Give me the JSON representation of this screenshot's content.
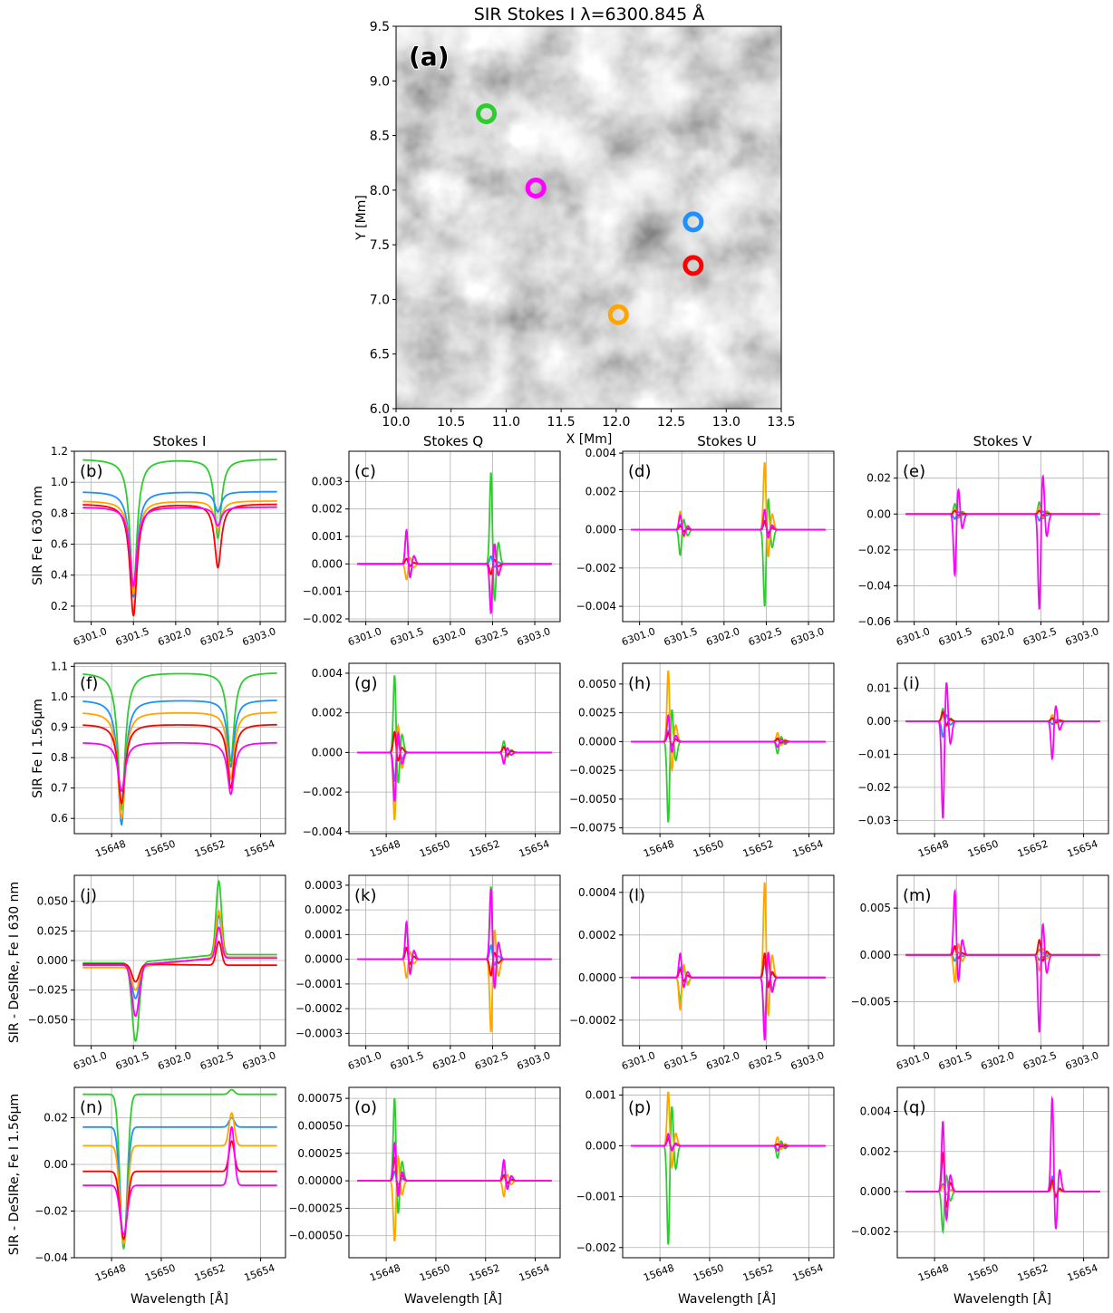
{
  "colors": {
    "green": "#2ecc2e",
    "blue": "#1e90ff",
    "orange": "#ffa500",
    "red": "#ff0000",
    "magenta": "#ff00ff",
    "grid": "#b0b0b0"
  },
  "figure": {
    "map": {
      "title": "SIR Stokes I λ=6300.845 Å",
      "panel": "(a)",
      "xlabel": "X [Mm]",
      "ylabel": "Y [Mm]",
      "xlim": [
        10.0,
        13.5
      ],
      "ylim": [
        6.0,
        9.5
      ],
      "xticks": [
        "10.0",
        "10.5",
        "11.0",
        "11.5",
        "12.0",
        "12.5",
        "13.0",
        "13.5"
      ],
      "yticks": [
        "6.0",
        "6.5",
        "7.0",
        "7.5",
        "8.0",
        "8.5",
        "9.0",
        "9.5"
      ],
      "markers": [
        {
          "x": 10.82,
          "y": 8.7,
          "color": "green"
        },
        {
          "x": 11.27,
          "y": 8.02,
          "color": "magenta"
        },
        {
          "x": 12.7,
          "y": 7.71,
          "color": "blue"
        },
        {
          "x": 12.7,
          "y": 7.31,
          "color": "red"
        },
        {
          "x": 12.02,
          "y": 6.86,
          "color": "orange"
        }
      ]
    },
    "col_titles": [
      "Stokes I",
      "Stokes Q",
      "Stokes U",
      "Stokes V"
    ],
    "row_labels": [
      "SIR Fe I 630 nm",
      "SIR Fe I 1.56μm",
      "SIR - DeSIRe, Fe I 630 nm",
      "SIR - DeSIRe, Fe I 1.56μm"
    ],
    "xlabel": "Wavelength [Å]"
  },
  "chart_data": [
    {
      "panel": "(b)",
      "type": "line",
      "xlim": [
        6300.8,
        6303.3
      ],
      "ylim": [
        0.1,
        1.2
      ],
      "xticks": [
        "6301.0",
        "6301.5",
        "6302.0",
        "6302.5",
        "6303.0"
      ],
      "yticks": [
        "0.2",
        "0.4",
        "0.6",
        "0.8",
        "1.0",
        "1.2"
      ],
      "lines": [
        6301.5,
        6302.5
      ],
      "series": [
        {
          "color": "green",
          "params": [
            1.15,
            0.3,
            0.86,
            0.35
          ]
        },
        {
          "color": "blue",
          "params": [
            0.94,
            0.26,
            0.67,
            0.54
          ]
        },
        {
          "color": "orange",
          "params": [
            0.88,
            0.28,
            0.68,
            0.49
          ]
        },
        {
          "color": "red",
          "params": [
            0.86,
            0.14,
            0.61,
            0.2
          ]
        },
        {
          "color": "magenta",
          "params": [
            0.84,
            0.33,
            0.52,
            0.4
          ]
        }
      ]
    },
    {
      "panel": "(c)",
      "type": "line",
      "xlim": [
        6300.8,
        6303.3
      ],
      "ylim": [
        -0.0021,
        0.0041
      ],
      "xticks": [
        "6301.0",
        "6301.5",
        "6302.0",
        "6302.5",
        "6303.0"
      ],
      "yticks": [
        "−0.002",
        "−0.001",
        "0.000",
        "0.001",
        "0.002",
        "0.003"
      ],
      "lines": [
        6301.5,
        6302.5
      ],
      "series": [
        {
          "color": "green",
          "peaks": [
            0.0013,
            0.0035
          ]
        },
        {
          "color": "blue",
          "peaks": [
            0.0002,
            0.0003
          ]
        },
        {
          "color": "orange",
          "peaks": [
            -0.0006,
            -0.0015
          ]
        },
        {
          "color": "red",
          "peaks": [
            0.0002,
            -0.0004
          ]
        },
        {
          "color": "magenta",
          "peaks": [
            0.0013,
            -0.0019
          ]
        }
      ]
    },
    {
      "panel": "(d)",
      "type": "line",
      "xlim": [
        6300.8,
        6303.3
      ],
      "ylim": [
        -0.0048,
        0.0041
      ],
      "xticks": [
        "6301.0",
        "6301.5",
        "6302.0",
        "6302.5",
        "6303.0"
      ],
      "yticks": [
        "−0.004",
        "−0.002",
        "0.000",
        "0.002",
        "0.004"
      ],
      "lines": [
        6301.5,
        6302.5
      ],
      "series": [
        {
          "color": "green",
          "peaks": [
            -0.0014,
            -0.0042
          ]
        },
        {
          "color": "blue",
          "peaks": [
            0.0003,
            0.0004
          ]
        },
        {
          "color": "orange",
          "peaks": [
            0.001,
            0.0037
          ]
        },
        {
          "color": "red",
          "peaks": [
            0.0002,
            0.0005
          ]
        },
        {
          "color": "magenta",
          "peaks": [
            0.0008,
            0.0011
          ]
        }
      ]
    },
    {
      "panel": "(e)",
      "type": "line",
      "xlim": [
        6300.8,
        6303.3
      ],
      "ylim": [
        -0.06,
        0.035
      ],
      "xticks": [
        "6301.0",
        "6301.5",
        "6302.0",
        "6302.5",
        "6303.0"
      ],
      "yticks": [
        "−0.06",
        "−0.04",
        "−0.02",
        "0.00",
        "0.02"
      ],
      "lines": [
        6301.5,
        6302.5
      ],
      "series": [
        {
          "color": "green",
          "peaks": [
            0.006,
            0.007
          ]
        },
        {
          "color": "blue",
          "peaks": [
            -0.003,
            -0.004
          ]
        },
        {
          "color": "orange",
          "peaks": [
            0.003,
            0.004
          ]
        },
        {
          "color": "red",
          "peaks": [
            0.002,
            0.002
          ]
        },
        {
          "color": "magenta",
          "peaks": [
            -0.036,
            -0.056
          ]
        }
      ]
    },
    {
      "panel": "(f)",
      "type": "line",
      "xlim": [
        15646.5,
        15655.0
      ],
      "ylim": [
        0.55,
        1.11
      ],
      "xticks": [
        "15648",
        "15650",
        "15652",
        "15654"
      ],
      "yticks": [
        "0.6",
        "0.7",
        "0.8",
        "0.9",
        "1.0",
        "1.1"
      ],
      "lines": [
        15648.4,
        15652.8
      ],
      "series": [
        {
          "color": "green",
          "params": [
            1.08,
            0.63,
            0.95,
            0.66
          ]
        },
        {
          "color": "blue",
          "params": [
            0.99,
            0.58,
            0.92,
            0.7
          ]
        },
        {
          "color": "orange",
          "params": [
            0.95,
            0.6,
            0.9,
            0.68
          ]
        },
        {
          "color": "red",
          "params": [
            0.91,
            0.65,
            0.91,
            0.7
          ]
        },
        {
          "color": "magenta",
          "params": [
            0.85,
            0.69,
            0.9,
            0.73
          ]
        }
      ]
    },
    {
      "panel": "(g)",
      "type": "line",
      "xlim": [
        15646.5,
        15655.0
      ],
      "ylim": [
        -0.0041,
        0.0045
      ],
      "xticks": [
        "15648",
        "15650",
        "15652",
        "15654"
      ],
      "yticks": [
        "−0.004",
        "−0.002",
        "0.000",
        "0.002",
        "0.004"
      ],
      "lines": [
        15648.4,
        15652.8
      ],
      "series": [
        {
          "color": "green",
          "peaks": [
            0.0041,
            0.0006
          ]
        },
        {
          "color": "blue",
          "peaks": [
            -0.0015,
            0.0003
          ]
        },
        {
          "color": "orange",
          "peaks": [
            -0.0036,
            -0.0005
          ]
        },
        {
          "color": "red",
          "peaks": [
            0.0011,
            0.0003
          ]
        },
        {
          "color": "magenta",
          "peaks": [
            -0.0026,
            -0.0006
          ]
        }
      ]
    },
    {
      "panel": "(h)",
      "type": "line",
      "xlim": [
        15646.5,
        15655.0
      ],
      "ylim": [
        -0.008,
        0.0068
      ],
      "xticks": [
        "15648",
        "15650",
        "15652",
        "15654"
      ],
      "yticks": [
        "−0.0075",
        "−0.0050",
        "−0.0025",
        "0.0000",
        "0.0025",
        "0.0050"
      ],
      "lines": [
        15648.4,
        15652.8
      ],
      "series": [
        {
          "color": "green",
          "peaks": [
            -0.0074,
            -0.0011
          ]
        },
        {
          "color": "blue",
          "peaks": [
            0.001,
            0.0002
          ]
        },
        {
          "color": "orange",
          "peaks": [
            0.0065,
            0.0008
          ]
        },
        {
          "color": "red",
          "peaks": [
            0.0008,
            0.0003
          ]
        },
        {
          "color": "magenta",
          "peaks": [
            0.0024,
            -0.0005
          ]
        }
      ]
    },
    {
      "panel": "(i)",
      "type": "line",
      "xlim": [
        15646.5,
        15655.0
      ],
      "ylim": [
        -0.034,
        0.0175
      ],
      "xticks": [
        "15648",
        "15650",
        "15652",
        "15654"
      ],
      "yticks": [
        "−0.03",
        "−0.02",
        "−0.01",
        "0.00",
        "0.01"
      ],
      "lines": [
        15648.4,
        15652.8
      ],
      "series": [
        {
          "color": "green",
          "peaks": [
            0.004,
            0.001
          ]
        },
        {
          "color": "blue",
          "peaks": [
            -0.005,
            -0.001
          ]
        },
        {
          "color": "orange",
          "peaks": [
            0.002,
            0.002
          ]
        },
        {
          "color": "red",
          "peaks": [
            0.003,
            0.001
          ]
        },
        {
          "color": "magenta",
          "peaks": [
            -0.031,
            -0.012
          ]
        }
      ]
    },
    {
      "panel": "(j)",
      "type": "line",
      "xlim": [
        6300.8,
        6303.3
      ],
      "ylim": [
        -0.072,
        0.072
      ],
      "xticks": [
        "6301.0",
        "6301.5",
        "6302.0",
        "6302.5",
        "6303.0"
      ],
      "yticks": [
        "−0.050",
        "−0.025",
        "0.000",
        "0.025",
        "0.050"
      ],
      "lines": [
        6301.5,
        6302.5
      ],
      "series": [
        {
          "color": "green",
          "params": [
            -0.002,
            -0.068,
            0.005,
            0.067
          ]
        },
        {
          "color": "blue",
          "params": [
            -0.004,
            -0.032,
            0.002,
            0.038
          ]
        },
        {
          "color": "orange",
          "params": [
            -0.006,
            -0.025,
            0.003,
            0.042
          ]
        },
        {
          "color": "red",
          "params": [
            -0.003,
            -0.018,
            -0.004,
            0.016
          ]
        },
        {
          "color": "magenta",
          "params": [
            -0.004,
            -0.047,
            0.002,
            0.028
          ]
        }
      ]
    },
    {
      "panel": "(k)",
      "type": "line",
      "xlim": [
        6300.8,
        6303.3
      ],
      "ylim": [
        -0.00035,
        0.00034
      ],
      "xticks": [
        "6301.0",
        "6301.5",
        "6302.0",
        "6302.5",
        "6303.0"
      ],
      "yticks": [
        "−0.0003",
        "−0.0002",
        "−0.0001",
        "0.0000",
        "0.0001",
        "0.0002",
        "0.0003"
      ],
      "lines": [
        6301.5,
        6302.5
      ],
      "series": [
        {
          "color": "green",
          "peaks": [
            0.00014,
            0.00031
          ]
        },
        {
          "color": "blue",
          "peaks": [
            5e-05,
            6e-05
          ]
        },
        {
          "color": "orange",
          "peaks": [
            -8e-05,
            -0.00031
          ]
        },
        {
          "color": "red",
          "peaks": [
            5e-05,
            -7e-05
          ]
        },
        {
          "color": "magenta",
          "peaks": [
            0.00016,
            0.0003
          ]
        }
      ]
    },
    {
      "panel": "(l)",
      "type": "line",
      "xlim": [
        6300.8,
        6303.3
      ],
      "ylim": [
        -0.00032,
        0.00048
      ],
      "xticks": [
        "6301.0",
        "6301.5",
        "6302.0",
        "6302.5",
        "6303.0"
      ],
      "yticks": [
        "−0.0002",
        "0.0000",
        "0.0002",
        "0.0004"
      ],
      "lines": [
        6301.5,
        6302.5
      ],
      "series": [
        {
          "color": "green",
          "peaks": [
            -0.00012,
            -0.00025
          ]
        },
        {
          "color": "blue",
          "peaks": [
            5e-05,
            8e-05
          ]
        },
        {
          "color": "orange",
          "peaks": [
            -0.00016,
            0.00047
          ]
        },
        {
          "color": "red",
          "peaks": [
            4e-05,
            0.00012
          ]
        },
        {
          "color": "magenta",
          "peaks": [
            0.00012,
            -0.00031
          ]
        }
      ]
    },
    {
      "panel": "(m)",
      "type": "line",
      "xlim": [
        6300.8,
        6303.3
      ],
      "ylim": [
        -0.0097,
        0.0085
      ],
      "xticks": [
        "6301.0",
        "6301.5",
        "6302.0",
        "6302.5",
        "6303.0"
      ],
      "yticks": [
        "−0.005",
        "0.000",
        "0.005"
      ],
      "lines": [
        6301.5,
        6302.5
      ],
      "series": [
        {
          "color": "green",
          "peaks": [
            0.0008,
            0.0006
          ]
        },
        {
          "color": "blue",
          "peaks": [
            -0.0007,
            -0.0006
          ]
        },
        {
          "color": "orange",
          "peaks": [
            -0.0031,
            -0.0018
          ]
        },
        {
          "color": "red",
          "peaks": [
            0.001,
            0.0017
          ]
        },
        {
          "color": "magenta",
          "peaks": [
            0.0072,
            -0.0087
          ]
        }
      ]
    },
    {
      "panel": "(n)",
      "type": "line",
      "xlim": [
        15646.5,
        15655.0
      ],
      "ylim": [
        -0.04,
        0.033
      ],
      "xticks": [
        "15648",
        "15650",
        "15652",
        "15654"
      ],
      "yticks": [
        "−0.04",
        "−0.02",
        "0.00",
        "0.02"
      ],
      "lines": [
        15648.4,
        15652.8
      ],
      "series": [
        {
          "color": "green",
          "params": [
            0.03,
            -0.036,
            0.03,
            0.032
          ]
        },
        {
          "color": "blue",
          "params": [
            0.016,
            -0.034,
            0.016,
            0.02
          ]
        },
        {
          "color": "orange",
          "params": [
            0.008,
            -0.034,
            0.008,
            0.022
          ]
        },
        {
          "color": "red",
          "params": [
            -0.003,
            -0.032,
            -0.003,
            0.01
          ]
        },
        {
          "color": "magenta",
          "params": [
            -0.009,
            -0.03,
            -0.009,
            0.016
          ]
        }
      ]
    },
    {
      "panel": "(o)",
      "type": "line",
      "xlim": [
        15646.5,
        15655.0
      ],
      "ylim": [
        -0.0007,
        0.00085
      ],
      "xticks": [
        "15648",
        "15650",
        "15652",
        "15654"
      ],
      "yticks": [
        "−0.00050",
        "−0.00025",
        "0.00000",
        "0.00025",
        "0.00050",
        "0.00075"
      ],
      "lines": [
        15648.4,
        15652.8
      ],
      "series": [
        {
          "color": "green",
          "peaks": [
            0.00079,
            0.00016
          ]
        },
        {
          "color": "blue",
          "peaks": [
            9e-05,
            6e-05
          ]
        },
        {
          "color": "orange",
          "peaks": [
            -0.00058,
            -0.00015
          ]
        },
        {
          "color": "red",
          "peaks": [
            0.00022,
            5e-05
          ]
        },
        {
          "color": "magenta",
          "peaks": [
            0.00036,
            0.0002
          ]
        }
      ]
    },
    {
      "panel": "(p)",
      "type": "line",
      "xlim": [
        15646.5,
        15655.0
      ],
      "ylim": [
        -0.0022,
        0.00115
      ],
      "xticks": [
        "15648",
        "15650",
        "15652",
        "15654"
      ],
      "yticks": [
        "−0.002",
        "−0.001",
        "0.000",
        "0.001"
      ],
      "lines": [
        15648.4,
        15652.8
      ],
      "series": [
        {
          "color": "green",
          "peaks": [
            -0.00205,
            -0.00025
          ]
        },
        {
          "color": "blue",
          "peaks": [
            0.0002,
            3e-05
          ]
        },
        {
          "color": "orange",
          "peaks": [
            0.00112,
            0.00018
          ]
        },
        {
          "color": "red",
          "peaks": [
            0.00015,
            4e-05
          ]
        },
        {
          "color": "magenta",
          "peaks": [
            0.00025,
            -0.0001
          ]
        }
      ]
    },
    {
      "panel": "(q)",
      "type": "line",
      "xlim": [
        15646.5,
        15655.0
      ],
      "ylim": [
        -0.0033,
        0.0052
      ],
      "xticks": [
        "15648",
        "15650",
        "15652",
        "15654"
      ],
      "yticks": [
        "−0.002",
        "0.000",
        "0.002",
        "0.004"
      ],
      "lines": [
        15648.4,
        15652.8
      ],
      "series": [
        {
          "color": "green",
          "peaks": [
            -0.0021,
            0.0004
          ]
        },
        {
          "color": "blue",
          "peaks": [
            0.0004,
            0.0008
          ]
        },
        {
          "color": "orange",
          "peaks": [
            0.0003,
            0.0003
          ]
        },
        {
          "color": "red",
          "peaks": [
            0.002,
            0.0006
          ]
        },
        {
          "color": "magenta",
          "peaks": [
            0.0037,
            0.0049
          ]
        }
      ]
    }
  ]
}
